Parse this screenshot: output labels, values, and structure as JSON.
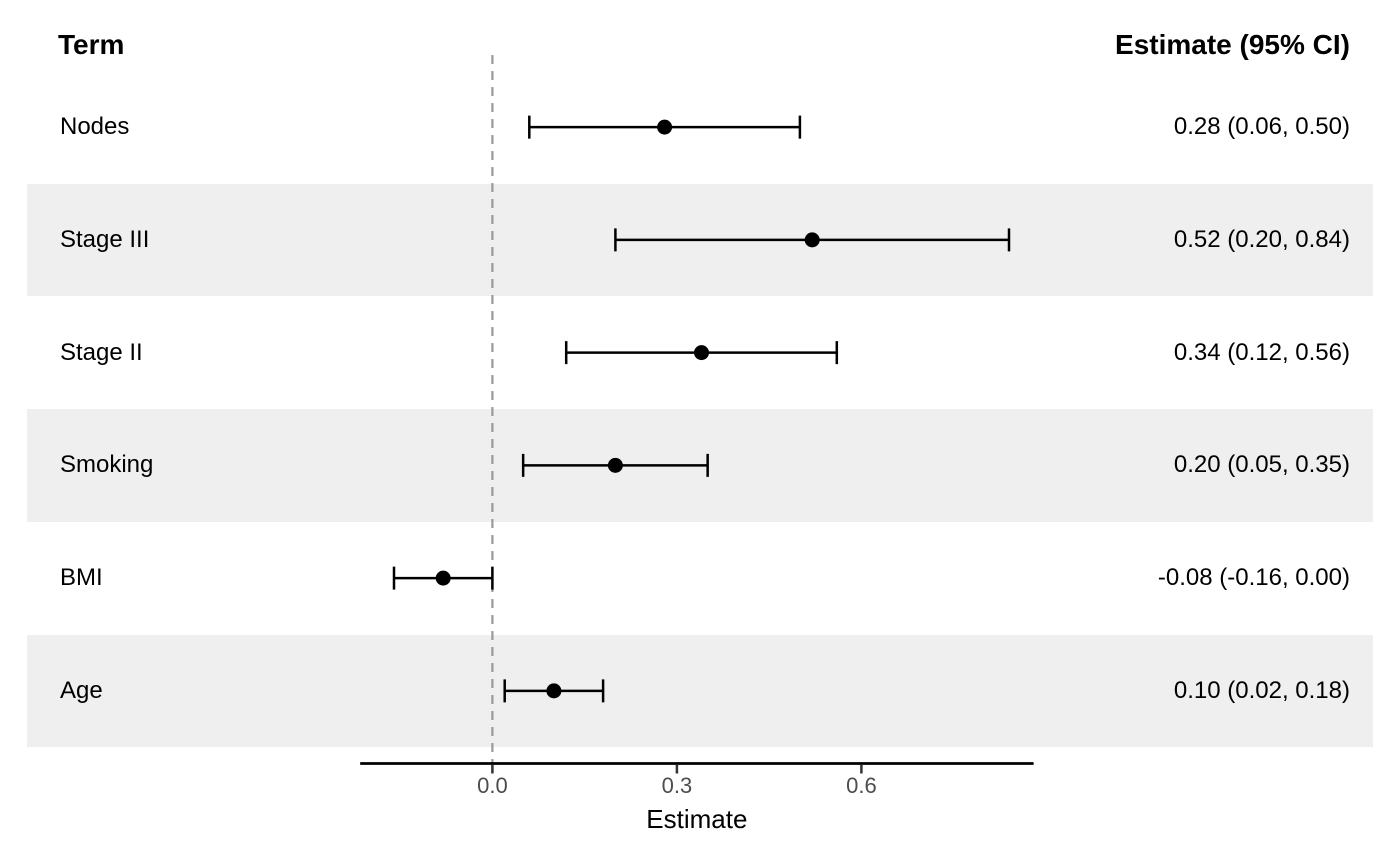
{
  "chart_data": {
    "type": "forest",
    "columns": {
      "term_header": "Term",
      "estimate_header": "Estimate (95% CI)"
    },
    "xlabel": "Estimate",
    "xlim": [
      -0.215,
      0.88
    ],
    "x_ticks": [
      {
        "value": 0.0,
        "label": "0.0"
      },
      {
        "value": 0.3,
        "label": "0.3"
      },
      {
        "value": 0.6,
        "label": "0.6"
      }
    ],
    "zero_line_value": 0,
    "rows": [
      {
        "term": "Nodes",
        "estimate": 0.28,
        "ci_low": 0.06,
        "ci_high": 0.5,
        "estimate_label": "0.28 (0.06, 0.50)"
      },
      {
        "term": "Stage III",
        "estimate": 0.52,
        "ci_low": 0.2,
        "ci_high": 0.84,
        "estimate_label": "0.52 (0.20, 0.84)"
      },
      {
        "term": "Stage II",
        "estimate": 0.34,
        "ci_low": 0.12,
        "ci_high": 0.56,
        "estimate_label": "0.34 (0.12, 0.56)"
      },
      {
        "term": "Smoking",
        "estimate": 0.2,
        "ci_low": 0.05,
        "ci_high": 0.35,
        "estimate_label": "0.20 (0.05, 0.35)"
      },
      {
        "term": "BMI",
        "estimate": -0.08,
        "ci_low": -0.16,
        "ci_high": 0.0,
        "estimate_label": "-0.08 (-0.16, 0.00)"
      },
      {
        "term": "Age",
        "estimate": 0.1,
        "ci_low": 0.02,
        "ci_high": 0.18,
        "estimate_label": "0.10 (0.02, 0.18)"
      }
    ],
    "legend": null,
    "grid": false
  },
  "style": {
    "stripe_color": "#EFEFEF",
    "row_plain_color": "#FFFFFF",
    "zero_line_color": "#999999",
    "marker_color": "#000000",
    "axis_line_color": "#000000",
    "tick_mark_color": "#333333",
    "tick_label_color": "#4D4D4D"
  }
}
